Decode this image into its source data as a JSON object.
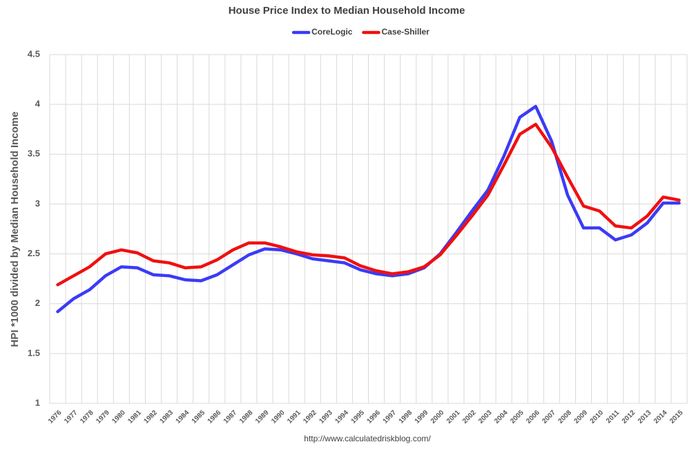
{
  "chart_data": {
    "type": "line",
    "title": "House Price Index to Median Household Income",
    "y_label": "HPI *1000 divided by Median Household Income",
    "source": "http://www.calculatedriskblog.com/",
    "categories": [
      "1976",
      "1977",
      "1978",
      "1979",
      "1980",
      "1981",
      "1982",
      "1983",
      "1984",
      "1985",
      "1986",
      "1987",
      "1988",
      "1989",
      "1990",
      "1991",
      "1992",
      "1993",
      "1994",
      "1995",
      "1996",
      "1997",
      "1998",
      "1999",
      "2000",
      "2001",
      "2002",
      "2003",
      "2004",
      "2005",
      "2006",
      "2007",
      "2008",
      "2009",
      "2010",
      "2011",
      "2012",
      "2013",
      "2014",
      "2015"
    ],
    "series": [
      {
        "name": "CoreLogic",
        "color": "#3b3bf5",
        "values": [
          1.92,
          2.05,
          2.14,
          2.28,
          2.37,
          2.36,
          2.29,
          2.28,
          2.24,
          2.23,
          2.29,
          2.39,
          2.49,
          2.55,
          2.54,
          2.5,
          2.45,
          2.43,
          2.41,
          2.34,
          2.3,
          2.28,
          2.3,
          2.36,
          2.5,
          2.71,
          2.93,
          3.14,
          3.48,
          3.87,
          3.98,
          3.63,
          3.09,
          2.76,
          2.76,
          2.64,
          2.69,
          2.81,
          3.01,
          3.01
        ]
      },
      {
        "name": "Case-Shiller",
        "color": "#f01010",
        "values": [
          2.19,
          2.28,
          2.37,
          2.5,
          2.54,
          2.51,
          2.43,
          2.41,
          2.36,
          2.37,
          2.44,
          2.54,
          2.61,
          2.61,
          2.57,
          2.52,
          2.49,
          2.48,
          2.46,
          2.38,
          2.33,
          2.3,
          2.32,
          2.37,
          2.49,
          2.68,
          2.88,
          3.09,
          3.39,
          3.7,
          3.8,
          3.57,
          3.27,
          2.98,
          2.93,
          2.78,
          2.76,
          2.88,
          3.07,
          3.04
        ]
      }
    ],
    "ylim": [
      1,
      4.5
    ],
    "yticks": [
      1,
      1.5,
      2,
      2.5,
      3,
      3.5,
      4,
      4.5
    ],
    "grid": true,
    "legend": "top"
  }
}
